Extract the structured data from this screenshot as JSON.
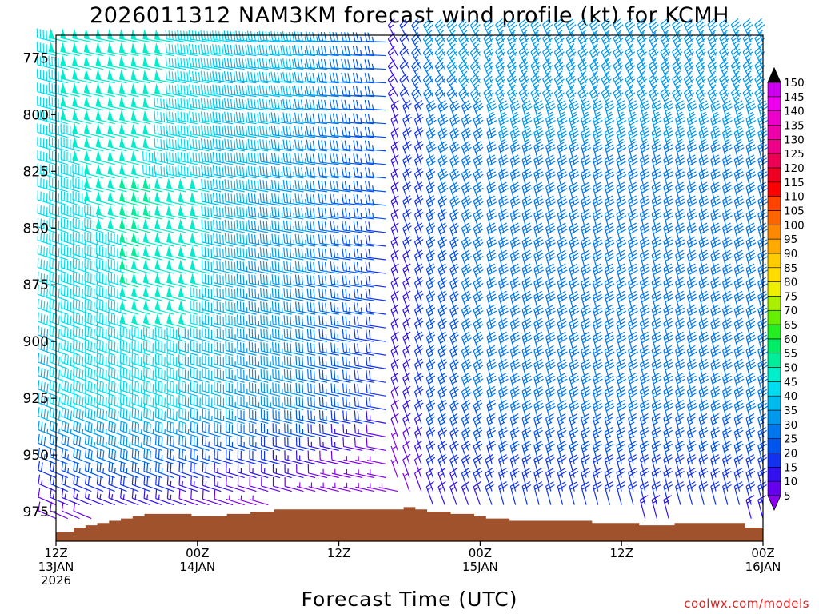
{
  "chart_data": {
    "type": "wind-barb-profile",
    "title": "2026011312 NAM3KM forecast wind profile (kt) for KCMH",
    "xlabel": "Forecast Time (UTC)",
    "ylabel": "",
    "credit": "coolwx.com/models",
    "x_range_hours": [
      0,
      60
    ],
    "y_range_hpa": [
      765,
      988
    ],
    "y_ticks": [
      775,
      800,
      825,
      850,
      875,
      900,
      925,
      950,
      975
    ],
    "x_ticks": [
      {
        "hour": 0,
        "lines": [
          "12Z",
          "13JAN",
          "2026"
        ]
      },
      {
        "hour": 12,
        "lines": [
          "00Z",
          "14JAN"
        ]
      },
      {
        "hour": 24,
        "lines": [
          "12Z"
        ]
      },
      {
        "hour": 36,
        "lines": [
          "00Z",
          "15JAN"
        ]
      },
      {
        "hour": 48,
        "lines": [
          "12Z"
        ]
      },
      {
        "hour": 60,
        "lines": [
          "00Z",
          "16JAN"
        ]
      }
    ],
    "colorbar": {
      "labels": [
        5,
        10,
        15,
        20,
        25,
        30,
        35,
        40,
        45,
        50,
        55,
        60,
        65,
        70,
        75,
        80,
        85,
        90,
        95,
        100,
        105,
        110,
        115,
        120,
        125,
        130,
        135,
        140,
        145,
        150
      ],
      "colors": [
        "#8800ee",
        "#6600ee",
        "#3311ee",
        "#1133ee",
        "#0055ee",
        "#0077ee",
        "#0099ee",
        "#00bbee",
        "#00ddee",
        "#00eecc",
        "#00ee99",
        "#00ee66",
        "#22ee22",
        "#66ee00",
        "#aaee00",
        "#eeee00",
        "#ffdd00",
        "#ffcc00",
        "#ffaa00",
        "#ff8800",
        "#ff6600",
        "#ff4400",
        "#ff0000",
        "#ee0022",
        "#ee0055",
        "#ee0088",
        "#ee00aa",
        "#ee00cc",
        "#ee00ee",
        "#cc00ee"
      ]
    },
    "surface_hpa": [
      [
        0,
        984
      ],
      [
        1,
        984
      ],
      [
        2,
        982
      ],
      [
        3,
        981
      ],
      [
        4,
        980
      ],
      [
        5,
        979
      ],
      [
        6,
        978
      ],
      [
        7,
        977
      ],
      [
        8,
        976
      ],
      [
        9,
        976
      ],
      [
        10,
        976
      ],
      [
        11,
        976
      ],
      [
        12,
        977
      ],
      [
        13,
        977
      ],
      [
        14,
        977
      ],
      [
        15,
        976
      ],
      [
        16,
        976
      ],
      [
        17,
        975
      ],
      [
        18,
        975
      ],
      [
        19,
        974
      ],
      [
        20,
        974
      ],
      [
        21,
        974
      ],
      [
        22,
        974
      ],
      [
        23,
        974
      ],
      [
        24,
        974
      ],
      [
        25,
        974
      ],
      [
        26,
        974
      ],
      [
        27,
        974
      ],
      [
        28,
        974
      ],
      [
        29,
        974
      ],
      [
        30,
        973
      ],
      [
        31,
        974
      ],
      [
        32,
        975
      ],
      [
        33,
        975
      ],
      [
        34,
        976
      ],
      [
        35,
        976
      ],
      [
        36,
        977
      ],
      [
        37,
        978
      ],
      [
        38,
        978
      ],
      [
        39,
        979
      ],
      [
        40,
        979
      ],
      [
        41,
        979
      ],
      [
        42,
        979
      ],
      [
        43,
        979
      ],
      [
        44,
        979
      ],
      [
        45,
        979
      ],
      [
        46,
        980
      ],
      [
        47,
        980
      ],
      [
        48,
        980
      ],
      [
        49,
        980
      ],
      [
        50,
        981
      ],
      [
        51,
        981
      ],
      [
        52,
        981
      ],
      [
        53,
        980
      ],
      [
        54,
        980
      ],
      [
        55,
        980
      ],
      [
        56,
        980
      ],
      [
        57,
        980
      ],
      [
        58,
        980
      ],
      [
        59,
        982
      ],
      [
        60,
        982
      ]
    ],
    "surface_color": "#a0522d",
    "barb_grid": {
      "hour_step": 1,
      "level_step_hpa": 6,
      "top_level_hpa": 768,
      "bottom_level_hpa": 980,
      "note": "wind barbs in knots; flow westerly (~270-300 deg) 40-55 kt before hour 29, veering northerly (~330-360 deg) 15-35 kt afterwards; weak (5-15 kt) near the surface"
    }
  }
}
